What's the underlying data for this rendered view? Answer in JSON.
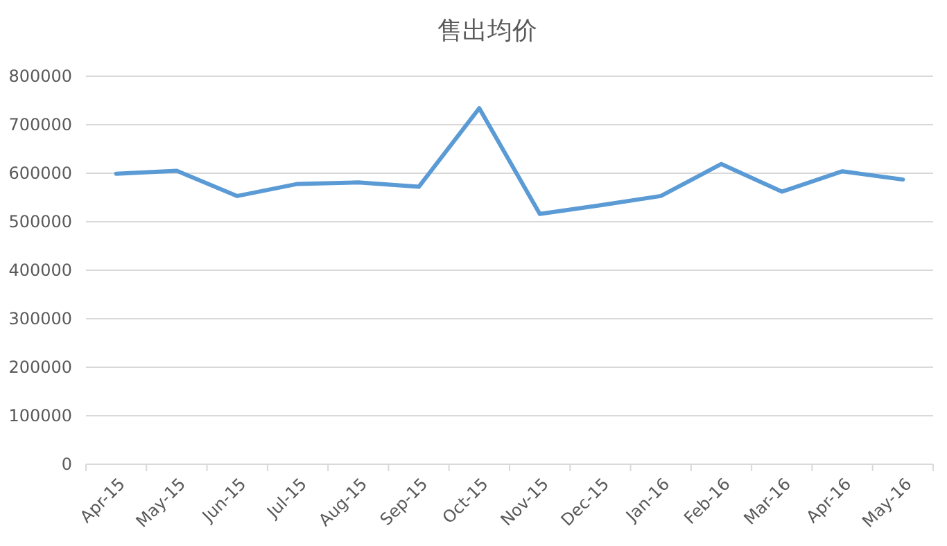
{
  "chart_data": {
    "type": "line",
    "title": "售出均价",
    "categories": [
      "Apr-15",
      "May-15",
      "Jun-15",
      "Jul-15",
      "Aug-15",
      "Sep-15",
      "Oct-15",
      "Nov-15",
      "Dec-15",
      "Jan-16",
      "Feb-16",
      "Mar-16",
      "Apr-16",
      "May-16"
    ],
    "series": [
      {
        "color": "#5b9bd5",
        "values": [
          599000,
          605000,
          553000,
          578000,
          581000,
          572000,
          734000,
          516000,
          534000,
          553000,
          619000,
          562000,
          604000,
          587000
        ]
      }
    ],
    "ylim": [
      0,
      800000
    ],
    "yticks": [
      0,
      100000,
      200000,
      300000,
      400000,
      500000,
      600000,
      700000,
      800000
    ],
    "grid": "y",
    "marker": "none",
    "line_style": "solid"
  }
}
